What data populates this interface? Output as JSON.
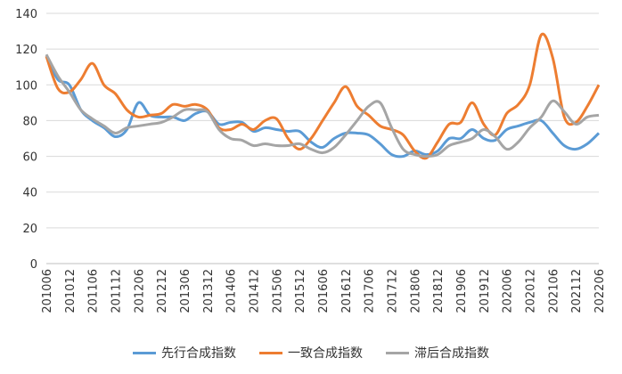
{
  "chart_data": {
    "type": "line",
    "title": "",
    "xlabel": "",
    "ylabel": "",
    "ylim": [
      0,
      140
    ],
    "yticks": [
      0,
      20,
      40,
      60,
      80,
      100,
      120,
      140
    ],
    "grid": true,
    "legend_position": "bottom",
    "x_tick_labels": [
      "201006",
      "201012",
      "201106",
      "201112",
      "201206",
      "201212",
      "201306",
      "201312",
      "201406",
      "201412",
      "201506",
      "201512",
      "201606",
      "201612",
      "201706",
      "201712",
      "201806",
      "201812",
      "201906",
      "201912",
      "202006",
      "202012",
      "202106",
      "202112",
      "202206"
    ],
    "x_frequency": "quarterly",
    "series": [
      {
        "name": "先行合成指数",
        "color": "#5b9bd5",
        "values": [
          116,
          103,
          100,
          86,
          80,
          76,
          71,
          75,
          90,
          83,
          82,
          82,
          80,
          84,
          85,
          78,
          79,
          79,
          74,
          76,
          75,
          74,
          74,
          68,
          65,
          70,
          73,
          73,
          72,
          67,
          61,
          60,
          63,
          61,
          63,
          70,
          70,
          75,
          70,
          69,
          75,
          77,
          79,
          80,
          73,
          66,
          64,
          67,
          73
        ]
      },
      {
        "name": "一致合成指数",
        "color": "#ed7d31",
        "values": [
          116,
          98,
          96,
          103,
          112,
          100,
          95,
          86,
          82,
          83,
          84,
          89,
          88,
          89,
          86,
          76,
          75,
          78,
          75,
          80,
          81,
          70,
          64,
          70,
          80,
          90,
          99,
          88,
          83,
          77,
          75,
          72,
          63,
          59,
          68,
          78,
          79,
          90,
          78,
          72,
          84,
          89,
          100,
          128,
          115,
          82,
          79,
          88,
          100
        ]
      },
      {
        "name": "滞后合成指数",
        "color": "#a5a5a5",
        "values": [
          117,
          105,
          96,
          86,
          81,
          77,
          73,
          76,
          77,
          78,
          79,
          82,
          86,
          86,
          85,
          75,
          70,
          69,
          66,
          67,
          66,
          66,
          67,
          64,
          62,
          65,
          72,
          80,
          88,
          90,
          76,
          64,
          61,
          60,
          61,
          66,
          68,
          70,
          75,
          71,
          64,
          68,
          76,
          82,
          91,
          85,
          78,
          82,
          83
        ]
      }
    ]
  }
}
